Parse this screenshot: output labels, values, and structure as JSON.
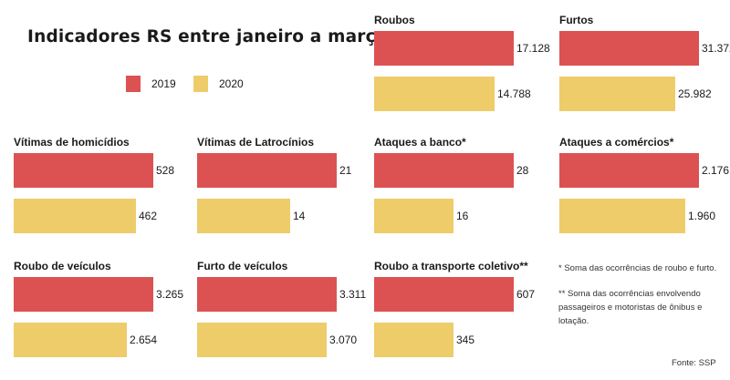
{
  "title": "Indicadores RS entre janeiro a março",
  "legend": [
    {
      "label": "2019",
      "color": "#dc5252"
    },
    {
      "label": "2020",
      "color": "#eecc6a"
    }
  ],
  "notes": {
    "note1": "* Soma das ocorrências de roubo e furto.",
    "note2_line1": "** Soma das ocorrências envolvendo",
    "note2_line2": "passageiros e motoristas de ônibus e lotação."
  },
  "source": "Fonte: SSP",
  "chart_data": [
    {
      "type": "bar",
      "title": "Roubos",
      "categories": [
        "2019",
        "2020"
      ],
      "values": [
        17128,
        14788
      ],
      "labels": [
        "17.128",
        "14.788"
      ]
    },
    {
      "type": "bar",
      "title": "Furtos",
      "categories": [
        "2019",
        "2020"
      ],
      "values": [
        31372,
        25982
      ],
      "labels": [
        "31.372",
        "25.982"
      ]
    },
    {
      "type": "bar",
      "title": "Vítimas de homicídios",
      "categories": [
        "2019",
        "2020"
      ],
      "values": [
        528,
        462
      ],
      "labels": [
        "528",
        "462"
      ]
    },
    {
      "type": "bar",
      "title": "Vítimas de Latrocínios",
      "categories": [
        "2019",
        "2020"
      ],
      "values": [
        21,
        14
      ],
      "labels": [
        "21",
        "14"
      ]
    },
    {
      "type": "bar",
      "title": "Ataques a banco*",
      "categories": [
        "2019",
        "2020"
      ],
      "values": [
        28,
        16
      ],
      "labels": [
        "28",
        "16"
      ]
    },
    {
      "type": "bar",
      "title": "Ataques a comércios*",
      "categories": [
        "2019",
        "2020"
      ],
      "values": [
        2176,
        1960
      ],
      "labels": [
        "2.176",
        "1.960"
      ]
    },
    {
      "type": "bar",
      "title": "Roubo de veículos",
      "categories": [
        "2019",
        "2020"
      ],
      "values": [
        3265,
        2654
      ],
      "labels": [
        "3.265",
        "2.654"
      ]
    },
    {
      "type": "bar",
      "title": "Furto de veículos",
      "categories": [
        "2019",
        "2020"
      ],
      "values": [
        3311,
        3070
      ],
      "labels": [
        "3.311",
        "3.070"
      ]
    },
    {
      "type": "bar",
      "title": "Roubo a transporte coletivo**",
      "categories": [
        "2019",
        "2020"
      ],
      "values": [
        607,
        345
      ],
      "labels": [
        "607",
        "345"
      ]
    }
  ]
}
